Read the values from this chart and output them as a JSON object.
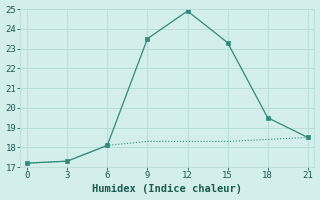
{
  "line1_x": [
    0,
    3,
    6,
    9,
    12,
    15,
    18,
    21
  ],
  "line1_y": [
    17.2,
    17.3,
    18.1,
    18.3,
    18.3,
    18.3,
    18.4,
    18.5
  ],
  "line2_x": [
    0,
    3,
    6,
    9,
    12,
    15,
    18,
    21
  ],
  "line2_y": [
    17.2,
    17.3,
    18.1,
    23.5,
    24.9,
    23.3,
    19.5,
    18.5
  ],
  "line_color": "#2e8b7a",
  "background_color": "#d4eeeb",
  "grid_color": "#b8ddd9",
  "xlabel": "Humidex (Indice chaleur)",
  "xlim": [
    -0.5,
    21.5
  ],
  "ylim": [
    17,
    25
  ],
  "xticks": [
    0,
    3,
    6,
    9,
    12,
    15,
    18,
    21
  ],
  "yticks": [
    17,
    18,
    19,
    20,
    21,
    22,
    23,
    24,
    25
  ],
  "font_color": "#1a5c52",
  "tick_fontsize": 6.5,
  "xlabel_fontsize": 7.5
}
